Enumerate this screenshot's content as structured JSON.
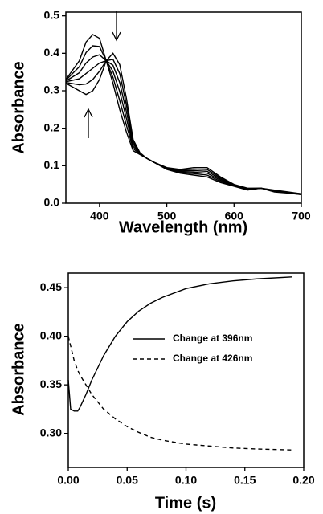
{
  "chart_data": [
    {
      "type": "line",
      "xlabel": "Wavelength (nm)",
      "ylabel": "Absorbance",
      "x": [
        350,
        370,
        380,
        390,
        400,
        410,
        420,
        430,
        440,
        450,
        460,
        470,
        480,
        500,
        520,
        540,
        560,
        580,
        600,
        620,
        640,
        660,
        680,
        700
      ],
      "series": [
        {
          "color": "#000000",
          "linestyle": "solid",
          "values": [
            0.32,
            0.3,
            0.29,
            0.3,
            0.33,
            0.38,
            0.4,
            0.37,
            0.28,
            0.17,
            0.135,
            0.12,
            0.11,
            0.095,
            0.09,
            0.095,
            0.095,
            0.07,
            0.05,
            0.04,
            0.04,
            0.035,
            0.03,
            0.025
          ]
        },
        {
          "color": "#000000",
          "linestyle": "solid",
          "values": [
            0.322,
            0.316,
            0.318,
            0.33,
            0.352,
            0.38,
            0.384,
            0.346,
            0.262,
            0.164,
            0.134,
            0.12,
            0.11,
            0.094,
            0.088,
            0.091,
            0.09,
            0.067,
            0.049,
            0.039,
            0.04,
            0.034,
            0.029,
            0.025
          ]
        },
        {
          "color": "#000000",
          "linestyle": "solid",
          "values": [
            0.324,
            0.332,
            0.346,
            0.36,
            0.374,
            0.38,
            0.368,
            0.322,
            0.244,
            0.158,
            0.133,
            0.12,
            0.11,
            0.093,
            0.086,
            0.087,
            0.085,
            0.064,
            0.048,
            0.038,
            0.04,
            0.033,
            0.029,
            0.024
          ]
        },
        {
          "color": "#000000",
          "linestyle": "solid",
          "values": [
            0.326,
            0.348,
            0.374,
            0.39,
            0.396,
            0.38,
            0.352,
            0.298,
            0.226,
            0.152,
            0.132,
            0.12,
            0.11,
            0.092,
            0.084,
            0.083,
            0.08,
            0.061,
            0.047,
            0.037,
            0.04,
            0.032,
            0.028,
            0.024
          ]
        },
        {
          "color": "#000000",
          "linestyle": "solid",
          "values": [
            0.328,
            0.364,
            0.402,
            0.42,
            0.418,
            0.38,
            0.336,
            0.274,
            0.208,
            0.146,
            0.131,
            0.12,
            0.11,
            0.091,
            0.082,
            0.079,
            0.075,
            0.058,
            0.046,
            0.036,
            0.04,
            0.031,
            0.028,
            0.023
          ]
        },
        {
          "color": "#000000",
          "linestyle": "solid",
          "values": [
            0.33,
            0.38,
            0.43,
            0.45,
            0.44,
            0.38,
            0.32,
            0.25,
            0.19,
            0.14,
            0.13,
            0.12,
            0.11,
            0.09,
            0.08,
            0.075,
            0.07,
            0.055,
            0.045,
            0.035,
            0.04,
            0.03,
            0.027,
            0.023
          ]
        }
      ],
      "xlim": [
        350,
        700
      ],
      "xticks": [
        400,
        500,
        600,
        700
      ],
      "ylim": [
        0,
        0.51
      ],
      "yticks": [
        {
          "value": 0,
          "label": "0.0"
        },
        {
          "value": 0.1,
          "label": "0.1"
        },
        {
          "value": 0.2,
          "label": "0.2"
        },
        {
          "value": 0.3,
          "label": "0.3"
        },
        {
          "value": 0.4,
          "label": "0.4"
        },
        {
          "value": 0.5,
          "label": "0.5"
        }
      ]
    },
    {
      "type": "line",
      "xlabel": "Time (s)",
      "ylabel": "Absorbance",
      "x": [
        0,
        0.002,
        0.005,
        0.008,
        0.01,
        0.015,
        0.02,
        0.03,
        0.04,
        0.05,
        0.06,
        0.07,
        0.08,
        0.1,
        0.12,
        0.14,
        0.16,
        0.19
      ],
      "series": [
        {
          "name": "Change at 396nm",
          "color": "#000000",
          "linestyle": "solid",
          "values": [
            0.355,
            0.325,
            0.323,
            0.323,
            0.327,
            0.34,
            0.355,
            0.38,
            0.4,
            0.415,
            0.426,
            0.434,
            0.44,
            0.449,
            0.454,
            0.457,
            0.459,
            0.461
          ]
        },
        {
          "name": "Change at 426nm",
          "color": "#000000",
          "linestyle": "dashed",
          "values": [
            0.4,
            0.39,
            0.375,
            0.365,
            0.36,
            0.35,
            0.34,
            0.325,
            0.315,
            0.307,
            0.301,
            0.296,
            0.293,
            0.289,
            0.287,
            0.285,
            0.284,
            0.283
          ]
        }
      ],
      "xlim": [
        0,
        0.2
      ],
      "xticks": [
        {
          "value": 0,
          "label": "0.00"
        },
        {
          "value": 0.05,
          "label": "0.05"
        },
        {
          "value": 0.1,
          "label": "0.10"
        },
        {
          "value": 0.15,
          "label": "0.15"
        },
        {
          "value": 0.2,
          "label": "0.20"
        }
      ],
      "ylim": [
        0.265,
        0.465
      ],
      "yticks": [
        {
          "value": 0.3,
          "label": "0.30"
        },
        {
          "value": 0.35,
          "label": "0.35"
        },
        {
          "value": 0.4,
          "label": "0.40"
        },
        {
          "value": 0.45,
          "label": "0.45"
        }
      ]
    }
  ]
}
